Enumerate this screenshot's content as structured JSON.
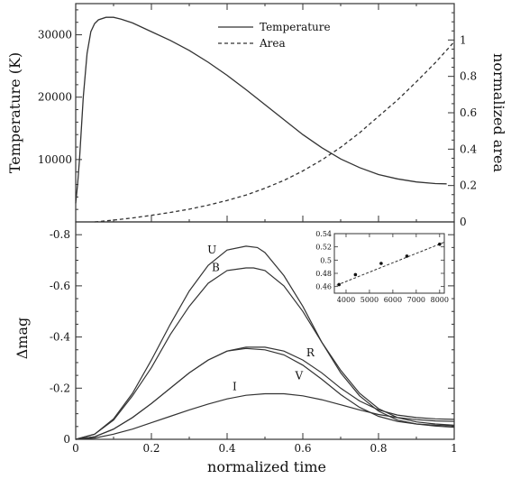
{
  "chart_data": [
    {
      "type": "line",
      "xlabel": "normalized time",
      "ylabel": "Temperature (K)",
      "ylabel_right": "normalized area",
      "xlim": [
        0,
        1
      ],
      "ylim": [
        0,
        35000
      ],
      "ylim_right": [
        0,
        1.2
      ],
      "yticks": [
        10000,
        20000,
        30000
      ],
      "yticks_right": [
        0,
        0.2,
        0.4,
        0.6,
        0.8,
        1
      ],
      "legend_position": "top-center",
      "series": [
        {
          "name": "Temperature",
          "axis": "left",
          "style": "solid",
          "x": [
            0,
            0.005,
            0.01,
            0.02,
            0.03,
            0.04,
            0.05,
            0.06,
            0.08,
            0.1,
            0.12,
            0.15,
            0.2,
            0.25,
            0.3,
            0.35,
            0.4,
            0.45,
            0.5,
            0.55,
            0.6,
            0.65,
            0.7,
            0.75,
            0.8,
            0.85,
            0.9,
            0.95,
            0.98
          ],
          "values": [
            3000,
            6000,
            10000,
            20000,
            27000,
            30500,
            31800,
            32400,
            32800,
            32800,
            32500,
            31900,
            30500,
            29100,
            27500,
            25600,
            23500,
            21200,
            18800,
            16400,
            14000,
            11900,
            10100,
            8700,
            7600,
            6900,
            6400,
            6150,
            6100
          ]
        },
        {
          "name": "Area",
          "axis": "right",
          "style": "dashed",
          "x": [
            0.05,
            0.1,
            0.15,
            0.2,
            0.25,
            0.3,
            0.35,
            0.4,
            0.45,
            0.5,
            0.55,
            0.6,
            0.65,
            0.7,
            0.75,
            0.8,
            0.85,
            0.9,
            0.95,
            1.0
          ],
          "values": [
            0.0,
            0.01,
            0.022,
            0.036,
            0.052,
            0.07,
            0.092,
            0.118,
            0.148,
            0.185,
            0.228,
            0.28,
            0.34,
            0.41,
            0.49,
            0.58,
            0.67,
            0.77,
            0.875,
            0.99
          ]
        }
      ]
    },
    {
      "type": "line",
      "xlabel": "normalized time",
      "ylabel": "Δmag",
      "xlim": [
        0,
        1
      ],
      "ylim": [
        0,
        -0.85
      ],
      "xticks": [
        0,
        0.2,
        0.4,
        0.6,
        0.8,
        1
      ],
      "yticks": [
        0,
        -0.2,
        -0.4,
        -0.6,
        -0.8
      ],
      "series": [
        {
          "name": "U",
          "x": [
            0,
            0.05,
            0.1,
            0.15,
            0.2,
            0.25,
            0.3,
            0.35,
            0.4,
            0.45,
            0.48,
            0.5,
            0.55,
            0.6,
            0.65,
            0.7,
            0.75,
            0.8,
            0.85,
            0.9,
            0.95,
            1.0
          ],
          "values": [
            0,
            -0.02,
            -0.08,
            -0.18,
            -0.31,
            -0.45,
            -0.58,
            -0.68,
            -0.74,
            -0.755,
            -0.75,
            -0.73,
            -0.64,
            -0.52,
            -0.38,
            -0.26,
            -0.17,
            -0.11,
            -0.075,
            -0.06,
            -0.052,
            -0.047
          ]
        },
        {
          "name": "B",
          "x": [
            0,
            0.05,
            0.1,
            0.15,
            0.2,
            0.25,
            0.3,
            0.35,
            0.4,
            0.45,
            0.47,
            0.5,
            0.55,
            0.6,
            0.65,
            0.7,
            0.75,
            0.8,
            0.85,
            0.9,
            0.95,
            1.0
          ],
          "values": [
            0,
            -0.02,
            -0.075,
            -0.17,
            -0.28,
            -0.41,
            -0.52,
            -0.61,
            -0.66,
            -0.67,
            -0.67,
            -0.66,
            -0.6,
            -0.5,
            -0.38,
            -0.27,
            -0.18,
            -0.12,
            -0.085,
            -0.068,
            -0.06,
            -0.055
          ]
        },
        {
          "name": "R",
          "x": [
            0,
            0.05,
            0.1,
            0.15,
            0.2,
            0.25,
            0.3,
            0.35,
            0.4,
            0.45,
            0.5,
            0.55,
            0.6,
            0.65,
            0.7,
            0.75,
            0.8,
            0.85,
            0.9,
            0.95,
            1.0
          ],
          "values": [
            0,
            -0.01,
            -0.04,
            -0.085,
            -0.14,
            -0.2,
            -0.26,
            -0.31,
            -0.345,
            -0.36,
            -0.36,
            -0.345,
            -0.31,
            -0.26,
            -0.2,
            -0.15,
            -0.115,
            -0.095,
            -0.085,
            -0.08,
            -0.078
          ]
        },
        {
          "name": "V",
          "x": [
            0,
            0.05,
            0.1,
            0.15,
            0.2,
            0.25,
            0.3,
            0.35,
            0.4,
            0.45,
            0.5,
            0.55,
            0.6,
            0.65,
            0.7,
            0.75,
            0.8,
            0.85,
            0.9,
            0.95,
            1.0
          ],
          "values": [
            0,
            -0.01,
            -0.04,
            -0.085,
            -0.14,
            -0.2,
            -0.26,
            -0.31,
            -0.345,
            -0.355,
            -0.35,
            -0.33,
            -0.29,
            -0.235,
            -0.175,
            -0.125,
            -0.09,
            -0.07,
            -0.06,
            -0.055,
            -0.052
          ]
        },
        {
          "name": "I",
          "x": [
            0,
            0.05,
            0.1,
            0.15,
            0.2,
            0.25,
            0.3,
            0.35,
            0.4,
            0.45,
            0.5,
            0.55,
            0.6,
            0.65,
            0.7,
            0.75,
            0.8,
            0.85,
            0.9,
            0.95,
            1.0
          ],
          "values": [
            0,
            -0.005,
            -0.02,
            -0.04,
            -0.065,
            -0.09,
            -0.115,
            -0.138,
            -0.158,
            -0.172,
            -0.178,
            -0.178,
            -0.17,
            -0.155,
            -0.135,
            -0.115,
            -0.097,
            -0.085,
            -0.077,
            -0.072,
            -0.07
          ]
        }
      ]
    },
    {
      "type": "scatter",
      "xlim": [
        3500,
        8200
      ],
      "ylim": [
        0.45,
        0.54
      ],
      "xticks": [
        4000,
        5000,
        6000,
        7000,
        8000
      ],
      "yticks": [
        0.46,
        0.48,
        0.5,
        0.52,
        0.54
      ],
      "yticks_text": [
        "0.46",
        "0.48",
        "0.5",
        "0.52",
        "0.54"
      ],
      "points": {
        "x": [
          3700,
          4400,
          5500,
          6600,
          8000
        ],
        "values": [
          0.463,
          0.478,
          0.495,
          0.506,
          0.524
        ]
      },
      "fit": {
        "style": "dashed",
        "x": [
          3600,
          8200
        ],
        "values": [
          0.462,
          0.527
        ]
      }
    }
  ]
}
